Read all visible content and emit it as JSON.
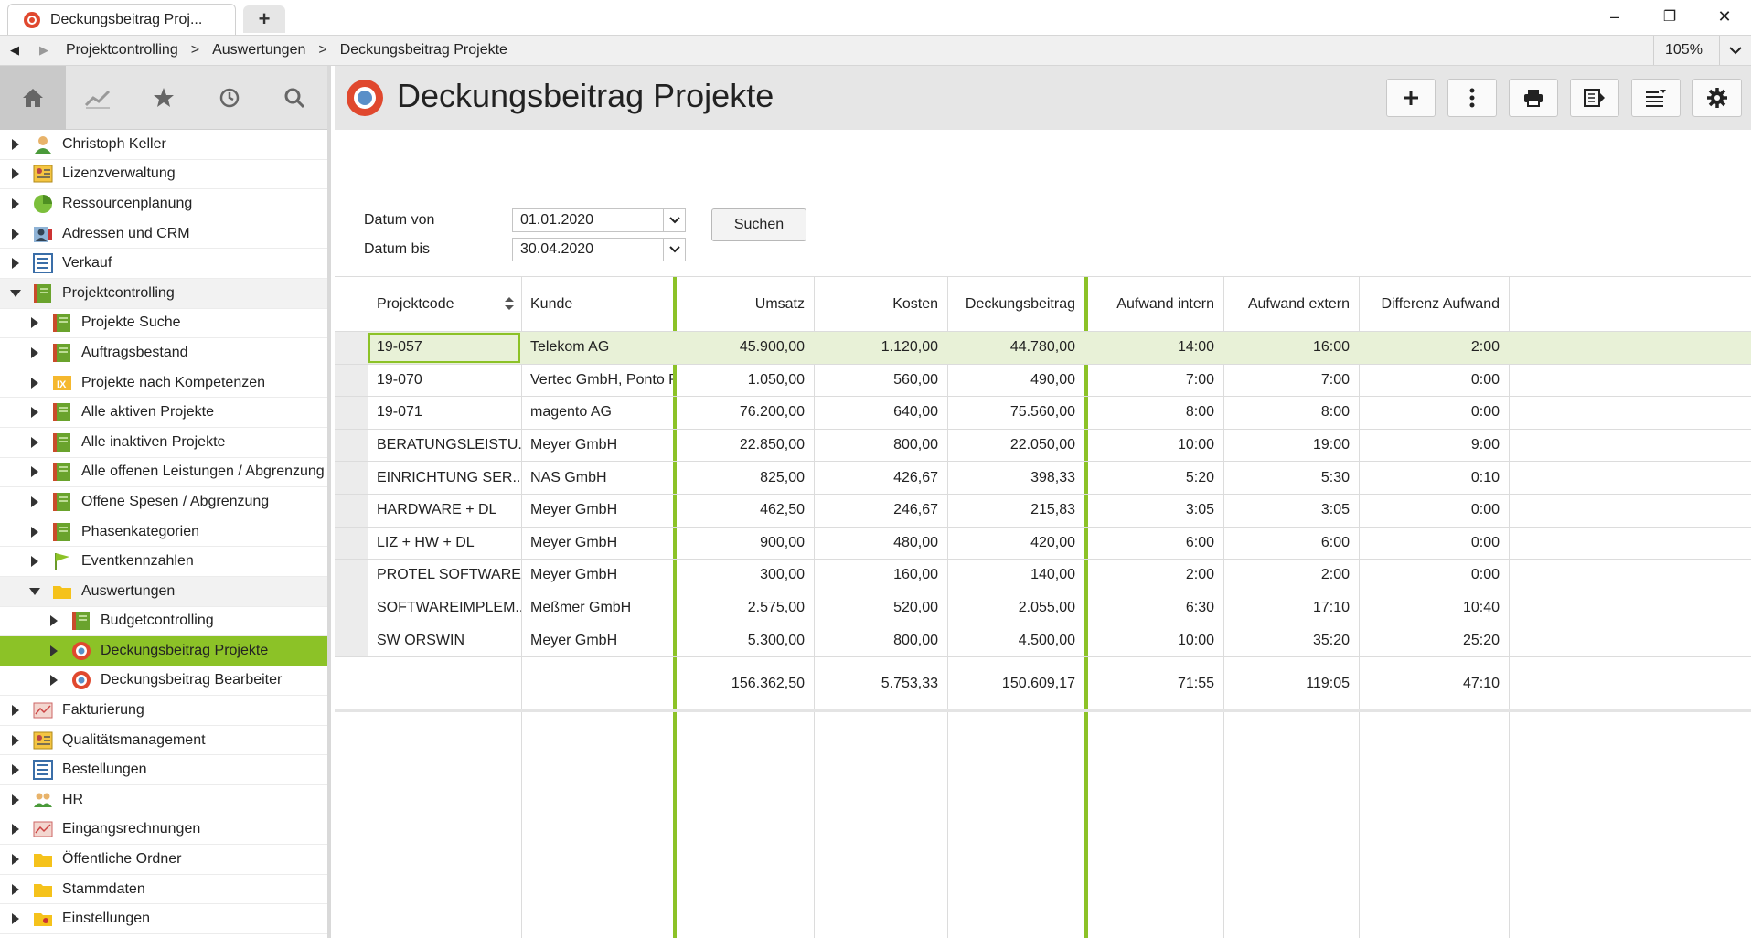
{
  "window": {
    "tab_title": "Deckungsbeitrag Proj...",
    "new_tab": "+",
    "minimize": "–",
    "restore": "❐",
    "close": "✕"
  },
  "nav": {
    "back": "◀",
    "forward": "▶",
    "crumbs": [
      "Projektcontrolling",
      "Auswertungen",
      "Deckungsbeitrag Projekte"
    ],
    "sep": ">",
    "zoom": "105%"
  },
  "sidebar": {
    "tools": [
      "home-icon",
      "chart-icon",
      "star-icon",
      "history-icon",
      "search-icon"
    ],
    "items": [
      {
        "label": "Christoph Keller",
        "level": 0,
        "icon": "person-icon"
      },
      {
        "label": "Lizenzverwaltung",
        "level": 0,
        "icon": "license-icon"
      },
      {
        "label": "Ressourcenplanung",
        "level": 0,
        "icon": "pie-icon"
      },
      {
        "label": "Adressen und CRM",
        "level": 0,
        "icon": "contacts-icon"
      },
      {
        "label": "Verkauf",
        "level": 0,
        "icon": "list-icon"
      },
      {
        "label": "Projektcontrolling",
        "level": 0,
        "icon": "book-icon",
        "expanded": true
      },
      {
        "label": "Projekte Suche",
        "level": 1,
        "icon": "book-icon"
      },
      {
        "label": "Auftragsbestand",
        "level": 1,
        "icon": "book-icon"
      },
      {
        "label": "Projekte nach Kompetenzen",
        "level": 1,
        "icon": "ix-icon"
      },
      {
        "label": "Alle aktiven Projekte",
        "level": 1,
        "icon": "book-icon"
      },
      {
        "label": "Alle inaktiven Projekte",
        "level": 1,
        "icon": "book-icon"
      },
      {
        "label": "Alle offenen Leistungen / Abgrenzung",
        "level": 1,
        "icon": "book-icon"
      },
      {
        "label": "Offene Spesen / Abgrenzung",
        "level": 1,
        "icon": "book-icon"
      },
      {
        "label": "Phasenkategorien",
        "level": 1,
        "icon": "book-icon"
      },
      {
        "label": "Eventkennzahlen",
        "level": 1,
        "icon": "flag-icon"
      },
      {
        "label": "Auswertungen",
        "level": 1,
        "icon": "folder-icon",
        "expanded": true
      },
      {
        "label": "Budgetcontrolling",
        "level": 2,
        "icon": "book-icon"
      },
      {
        "label": "Deckungsbeitrag Projekte",
        "level": 2,
        "icon": "report-icon",
        "selected": true
      },
      {
        "label": "Deckungsbeitrag Bearbeiter",
        "level": 2,
        "icon": "report-icon"
      },
      {
        "label": "Fakturierung",
        "level": 0,
        "icon": "invoice-icon"
      },
      {
        "label": "Qualitätsmanagement",
        "level": 0,
        "icon": "license-icon"
      },
      {
        "label": "Bestellungen",
        "level": 0,
        "icon": "list-icon"
      },
      {
        "label": "HR",
        "level": 0,
        "icon": "people-icon"
      },
      {
        "label": "Eingangsrechnungen",
        "level": 0,
        "icon": "invoice-icon"
      },
      {
        "label": "Öffentliche Ordner",
        "level": 0,
        "icon": "folder-icon"
      },
      {
        "label": "Stammdaten",
        "level": 0,
        "icon": "folder-icon"
      },
      {
        "label": "Einstellungen",
        "level": 0,
        "icon": "folder-settings-icon"
      }
    ]
  },
  "header": {
    "title": "Deckungsbeitrag Projekte",
    "buttons": [
      "add-icon",
      "more-icon",
      "print-icon",
      "export-icon",
      "list-settings-icon",
      "gear-icon"
    ]
  },
  "filters": {
    "from_label": "Datum von",
    "from_value": "01.01.2020",
    "to_label": "Datum bis",
    "to_value": "30.04.2020",
    "search_label": "Suchen"
  },
  "table": {
    "columns": [
      "Projektcode",
      "Kunde",
      "Umsatz",
      "Kosten",
      "Deckungsbeitrag",
      "Aufwand intern",
      "Aufwand extern",
      "Differenz Aufwand"
    ],
    "rows": [
      [
        "19-057",
        "Telekom AG",
        "45.900,00",
        "1.120,00",
        "44.780,00",
        "14:00",
        "16:00",
        "2:00"
      ],
      [
        "19-070",
        "Vertec GmbH, Ponto Patrick",
        "1.050,00",
        "560,00",
        "490,00",
        "7:00",
        "7:00",
        "0:00"
      ],
      [
        "19-071",
        "magento AG",
        "76.200,00",
        "640,00",
        "75.560,00",
        "8:00",
        "8:00",
        "0:00"
      ],
      [
        "BERATUNGSLEISTU...",
        "Meyer GmbH",
        "22.850,00",
        "800,00",
        "22.050,00",
        "10:00",
        "19:00",
        "9:00"
      ],
      [
        "EINRICHTUNG SER...",
        "NAS GmbH",
        "825,00",
        "426,67",
        "398,33",
        "5:20",
        "5:30",
        "0:10"
      ],
      [
        "HARDWARE + DL",
        "Meyer GmbH",
        "462,50",
        "246,67",
        "215,83",
        "3:05",
        "3:05",
        "0:00"
      ],
      [
        "LIZ + HW + DL",
        "Meyer GmbH",
        "900,00",
        "480,00",
        "420,00",
        "6:00",
        "6:00",
        "0:00"
      ],
      [
        "PROTEL SOFTWARE",
        "Meyer GmbH",
        "300,00",
        "160,00",
        "140,00",
        "2:00",
        "2:00",
        "0:00"
      ],
      [
        "SOFTWAREIMPLEM...",
        "Meßmer GmbH",
        "2.575,00",
        "520,00",
        "2.055,00",
        "6:30",
        "17:10",
        "10:40"
      ],
      [
        "SW ORSWIN",
        "Meyer GmbH",
        "5.300,00",
        "800,00",
        "4.500,00",
        "10:00",
        "35:20",
        "25:20"
      ]
    ],
    "totals": [
      "",
      "",
      "156.362,50",
      "5.753,33",
      "150.609,17",
      "71:55",
      "119:05",
      "47:10"
    ]
  },
  "colors": {
    "accent": "#8cc227",
    "selected_row": "#e8f1d7",
    "header_bg": "#e6e6e6"
  }
}
